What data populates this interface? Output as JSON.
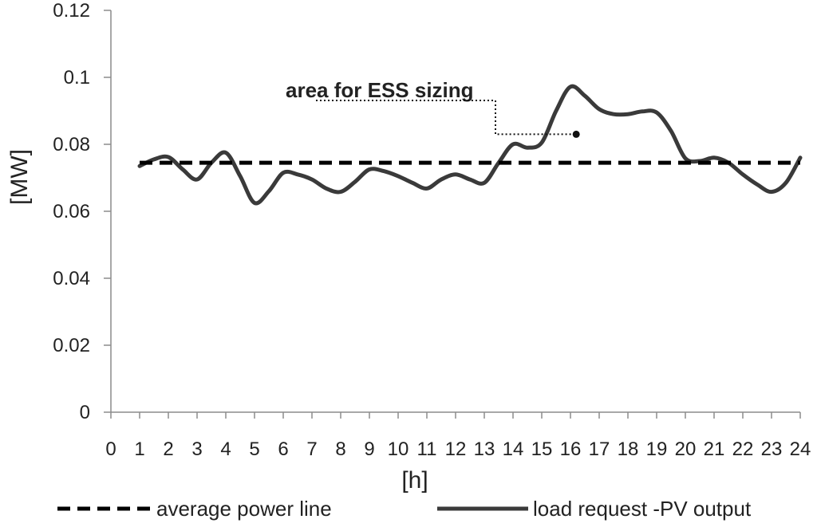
{
  "chart_data": {
    "type": "line",
    "xlabel": "[h]",
    "ylabel": "[MW]",
    "xlim": [
      0,
      24
    ],
    "ylim": [
      0,
      0.12
    ],
    "x_ticks": [
      0,
      1,
      2,
      3,
      4,
      5,
      6,
      7,
      8,
      9,
      10,
      11,
      12,
      13,
      14,
      15,
      16,
      17,
      18,
      19,
      20,
      21,
      22,
      23,
      24
    ],
    "y_ticks": [
      "0",
      "0.02",
      "0.04",
      "0.06",
      "0.08",
      "0.1",
      "0.12"
    ],
    "grid": false,
    "legend_position": "bottom",
    "series": [
      {
        "name": "average power line",
        "style": "dashed",
        "color": "#000000",
        "x": [
          1,
          24
        ],
        "y": [
          0.0745,
          0.0745
        ]
      },
      {
        "name": "load request -PV output",
        "style": "solid",
        "color": "#3a3a3a",
        "x": [
          1,
          1.5,
          2,
          2.5,
          3,
          3.5,
          4,
          4.5,
          5,
          5.5,
          6,
          6.5,
          7,
          7.5,
          8,
          8.5,
          9,
          9.5,
          10,
          10.5,
          11,
          11.5,
          12,
          12.5,
          13,
          13.5,
          14,
          14.5,
          15,
          15.5,
          16,
          16.5,
          17,
          17.5,
          18,
          18.5,
          19,
          19.5,
          20,
          20.5,
          21,
          21.5,
          22,
          22.5,
          23,
          23.5,
          24
        ],
        "y": [
          0.0735,
          0.0755,
          0.0762,
          0.0725,
          0.0695,
          0.0745,
          0.0775,
          0.0705,
          0.0625,
          0.066,
          0.0715,
          0.071,
          0.0695,
          0.0668,
          0.0658,
          0.0688,
          0.0725,
          0.072,
          0.0705,
          0.0685,
          0.0668,
          0.0695,
          0.071,
          0.0695,
          0.0685,
          0.0745,
          0.08,
          0.079,
          0.0805,
          0.09,
          0.0972,
          0.0945,
          0.0905,
          0.089,
          0.089,
          0.0898,
          0.0895,
          0.084,
          0.0758,
          0.075,
          0.076,
          0.0745,
          0.071,
          0.068,
          0.0658,
          0.0685,
          0.076
        ]
      }
    ],
    "annotation": {
      "text": "area for ESS sizing",
      "point": [
        16.2,
        0.083
      ]
    }
  }
}
